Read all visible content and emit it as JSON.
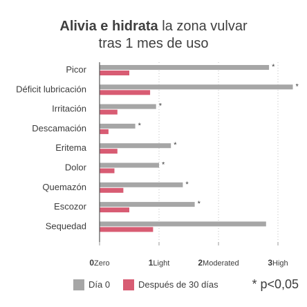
{
  "title": {
    "bold": "Alivia e hidrata",
    "rest": " la zona vulvar",
    "line2": "tras 1 mes de uso"
  },
  "legend": {
    "day0": "Día 0",
    "after": "Después de 30 días",
    "footnote": "* p<0,05"
  },
  "colors": {
    "day0": "#a6a6a6",
    "after": "#d85c73",
    "text": "#3c3c3c",
    "axis": "#555555"
  },
  "chart_data": {
    "type": "bar",
    "orientation": "horizontal",
    "categories": [
      "Picor",
      "Déficit lubricación",
      "Irritación",
      "Descamación",
      "Eritema",
      "Dolor",
      "Quemazón",
      "Escozor",
      "Sequedad"
    ],
    "series": [
      {
        "name": "Día 0",
        "values": [
          2.85,
          3.25,
          0.95,
          0.6,
          1.2,
          1.0,
          1.4,
          1.6,
          2.8
        ]
      },
      {
        "name": "Después de 30 días",
        "values": [
          0.5,
          0.85,
          0.3,
          0.15,
          0.3,
          0.25,
          0.4,
          0.5,
          0.9
        ]
      }
    ],
    "significant": [
      true,
      true,
      true,
      true,
      true,
      true,
      true,
      true,
      false
    ],
    "significance_marker": "*",
    "xlim": [
      0,
      3.3
    ],
    "xticks": [
      {
        "value": 0,
        "num": "0",
        "label": "Zero"
      },
      {
        "value": 1,
        "num": "1",
        "label": "Light"
      },
      {
        "value": 2,
        "num": "2",
        "label": "Moderated"
      },
      {
        "value": 3,
        "num": "3",
        "label": "High"
      }
    ],
    "grid": "vertical dotted",
    "legend_position": "bottom"
  }
}
